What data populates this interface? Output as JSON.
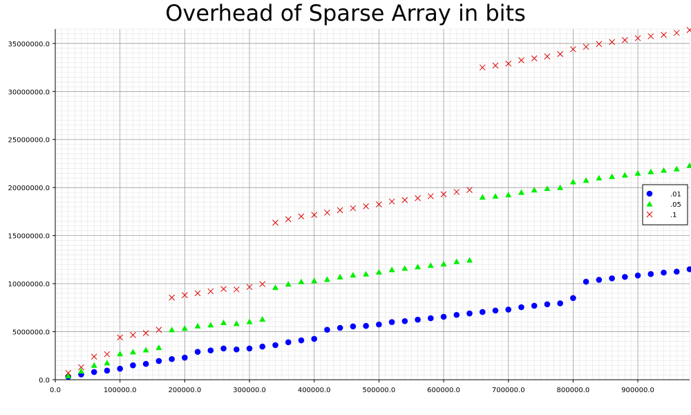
{
  "chart_data": {
    "type": "scatter",
    "title": "Overhead of Sparse Array in bits",
    "xlabel": "",
    "ylabel": "",
    "xlim": [
      0,
      980000
    ],
    "ylim": [
      0,
      36500000
    ],
    "x_ticks": [
      "0.0",
      "100000.0",
      "200000.0",
      "300000.0",
      "400000.0",
      "500000.0",
      "600000.0",
      "700000.0",
      "800000.0",
      "900000.0"
    ],
    "y_ticks": [
      "0.0",
      "5000000.0",
      "10000000.0",
      "15000000.0",
      "20000000.0",
      "25000000.0",
      "30000000.0",
      "35000000.0"
    ],
    "grid": true,
    "legend_position": "right",
    "x": [
      20000,
      40000,
      60000,
      80000,
      100000,
      120000,
      140000,
      160000,
      180000,
      200000,
      220000,
      240000,
      260000,
      280000,
      300000,
      320000,
      340000,
      360000,
      380000,
      400000,
      420000,
      440000,
      460000,
      480000,
      500000,
      520000,
      540000,
      560000,
      580000,
      600000,
      620000,
      640000,
      660000,
      680000,
      700000,
      720000,
      740000,
      760000,
      780000,
      800000,
      820000,
      840000,
      860000,
      880000,
      900000,
      920000,
      940000,
      960000,
      980000
    ],
    "series": [
      {
        "name": ".01",
        "color": "#0000ff",
        "marker": "circle",
        "values": [
          300000,
          550000,
          800000,
          950000,
          1150000,
          1500000,
          1650000,
          1950000,
          2150000,
          2300000,
          2900000,
          3050000,
          3250000,
          3150000,
          3250000,
          3450000,
          3600000,
          3900000,
          4100000,
          4250000,
          5200000,
          5400000,
          5550000,
          5600000,
          5750000,
          6000000,
          6100000,
          6250000,
          6400000,
          6550000,
          6750000,
          6900000,
          7050000,
          7200000,
          7300000,
          7550000,
          7700000,
          7850000,
          7950000,
          8500000,
          10200000,
          10400000,
          10550000,
          10700000,
          10850000,
          11000000,
          11150000,
          11250000,
          11500000
        ]
      },
      {
        "name": ".05",
        "color": "#00ee00",
        "marker": "triangle",
        "values": [
          400000,
          900000,
          1500000,
          1750000,
          2700000,
          2900000,
          3100000,
          3350000,
          5200000,
          5350000,
          5600000,
          5700000,
          5950000,
          5850000,
          6050000,
          6300000,
          9600000,
          9950000,
          10200000,
          10300000,
          10450000,
          10700000,
          10900000,
          11000000,
          11200000,
          11450000,
          11600000,
          11750000,
          11900000,
          12050000,
          12300000,
          12450000,
          19000000,
          19100000,
          19250000,
          19500000,
          19750000,
          19900000,
          20000000,
          20600000,
          20750000,
          21000000,
          21150000,
          21300000,
          21500000,
          21650000,
          21800000,
          21950000,
          22300000
        ]
      },
      {
        "name": ".1",
        "color": "#dd0000",
        "marker": "x",
        "values": [
          700000,
          1300000,
          2400000,
          2650000,
          4400000,
          4650000,
          4850000,
          5200000,
          8550000,
          8800000,
          9000000,
          9200000,
          9450000,
          9400000,
          9650000,
          9950000,
          16350000,
          16700000,
          17000000,
          17150000,
          17400000,
          17650000,
          17850000,
          18050000,
          18250000,
          18550000,
          18700000,
          18900000,
          19100000,
          19300000,
          19550000,
          19750000,
          32500000,
          32700000,
          32900000,
          33250000,
          33450000,
          33650000,
          33900000,
          34400000,
          34650000,
          34950000,
          35150000,
          35350000,
          35550000,
          35750000,
          35900000,
          36100000,
          36400000
        ]
      }
    ]
  }
}
